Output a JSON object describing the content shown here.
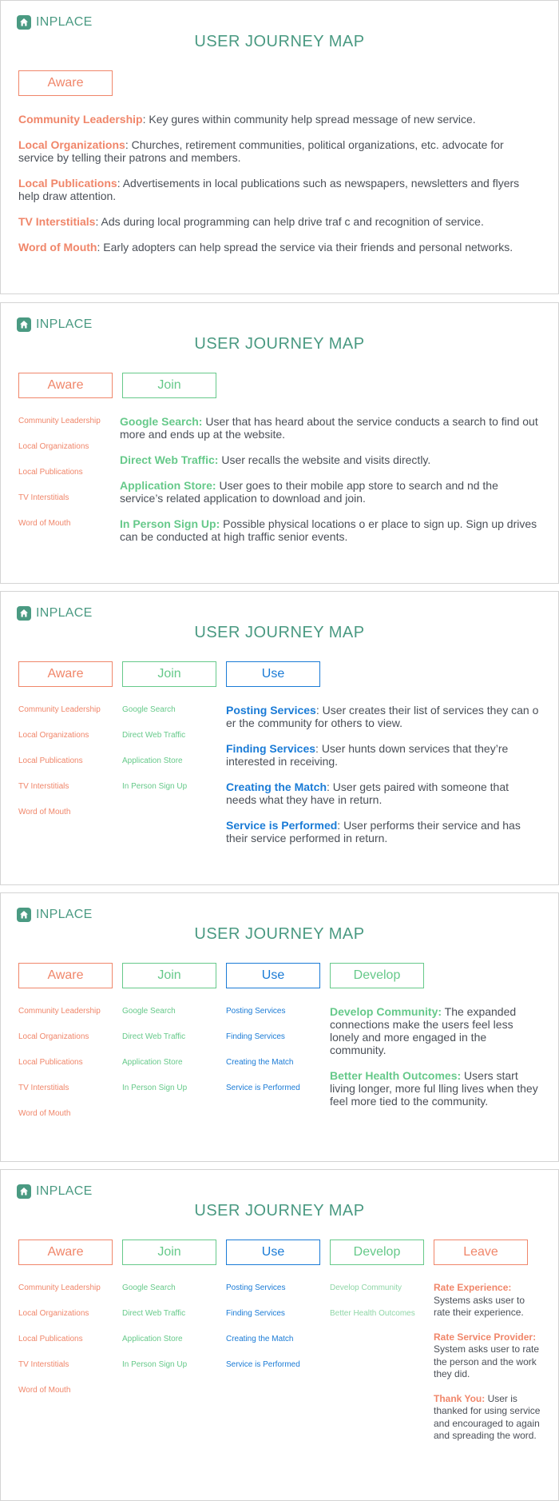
{
  "brand": "INPLACE",
  "title": "USER JOURNEY MAP",
  "stages": {
    "aware": "Aware",
    "join": "Join",
    "use": "Use",
    "develop": "Develop",
    "leave": "Leave"
  },
  "aware_items": [
    "Community Leadership",
    "Local Organizations",
    "Local Publications",
    "TV Interstitials",
    "Word of Mouth"
  ],
  "join_items": [
    "Google Search",
    "Direct Web Traffic",
    "Application Store",
    "In Person Sign Up"
  ],
  "use_items": [
    "Posting Services",
    "Finding Services",
    "Creating the Match",
    "Service is Performed"
  ],
  "develop_items": [
    "Develop Community",
    "Better Health Outcomes"
  ],
  "aware_desc": [
    {
      "key": "Community Leadership",
      "text": ": Key  gures within community help spread message of new service."
    },
    {
      "key": "Local Organizations",
      "text": ": Churches, retirement communities, political organizations, etc. advocate for service by telling their patrons and members."
    },
    {
      "key": "Local Publications",
      "text": ": Advertisements in local publications such as newspapers, newsletters and flyers help draw attention."
    },
    {
      "key": "TV Interstitials",
      "text": ": Ads during local programming can help drive traf c and recognition of service."
    },
    {
      "key": "Word of Mouth",
      "text": ": Early adopters can help spread the service via their friends and personal networks."
    }
  ],
  "join_desc": [
    {
      "key": "Google Search:",
      "text": " User that has heard about the service conducts a search to find out more and ends up at the website."
    },
    {
      "key": "Direct Web Traffic:",
      "text": " User recalls the website and visits directly."
    },
    {
      "key": "Application Store:",
      "text": " User goes to their mobile app store to search and  nd the service’s related application to download and join."
    },
    {
      "key": "In Person Sign Up:",
      "text": " Possible physical locations o er place to sign up. Sign up drives can be conducted at high traffic senior events."
    }
  ],
  "use_desc": [
    {
      "key": "Posting Services",
      "text": ": User creates their list of services they can o er the community for others to view."
    },
    {
      "key": "Finding Services",
      "text": ": User hunts down services that they’re interested in receiving."
    },
    {
      "key": "Creating the Match",
      "text": ": User gets paired with someone that needs what they have in return."
    },
    {
      "key": "Service is Performed",
      "text": ": User performs their service and has their service performed in return."
    }
  ],
  "develop_desc": [
    {
      "key": "Develop Community:",
      "text": " The expanded connections make the users feel less lonely and more engaged in the community."
    },
    {
      "key": "Better Health Outcomes:",
      "text": " Users start living longer, more ful lling lives when they feel more tied to the community."
    }
  ],
  "leave_desc": [
    {
      "key": "Rate Experience:",
      "text": " Systems asks user to rate their experience."
    },
    {
      "key": "Rate Service Provider:",
      "text": " System asks user to rate the person and the work they did."
    },
    {
      "key": "Thank You:",
      "text": " User is thanked for using service and encouraged to again and spreading the word."
    }
  ],
  "colors": {
    "brand": "#4a9a82",
    "aware": "#f0866a",
    "join": "#66c98a",
    "use": "#1a7bd6",
    "develop": "#66c98a",
    "leave": "#f0866a",
    "body_text": "#4a4f57"
  }
}
